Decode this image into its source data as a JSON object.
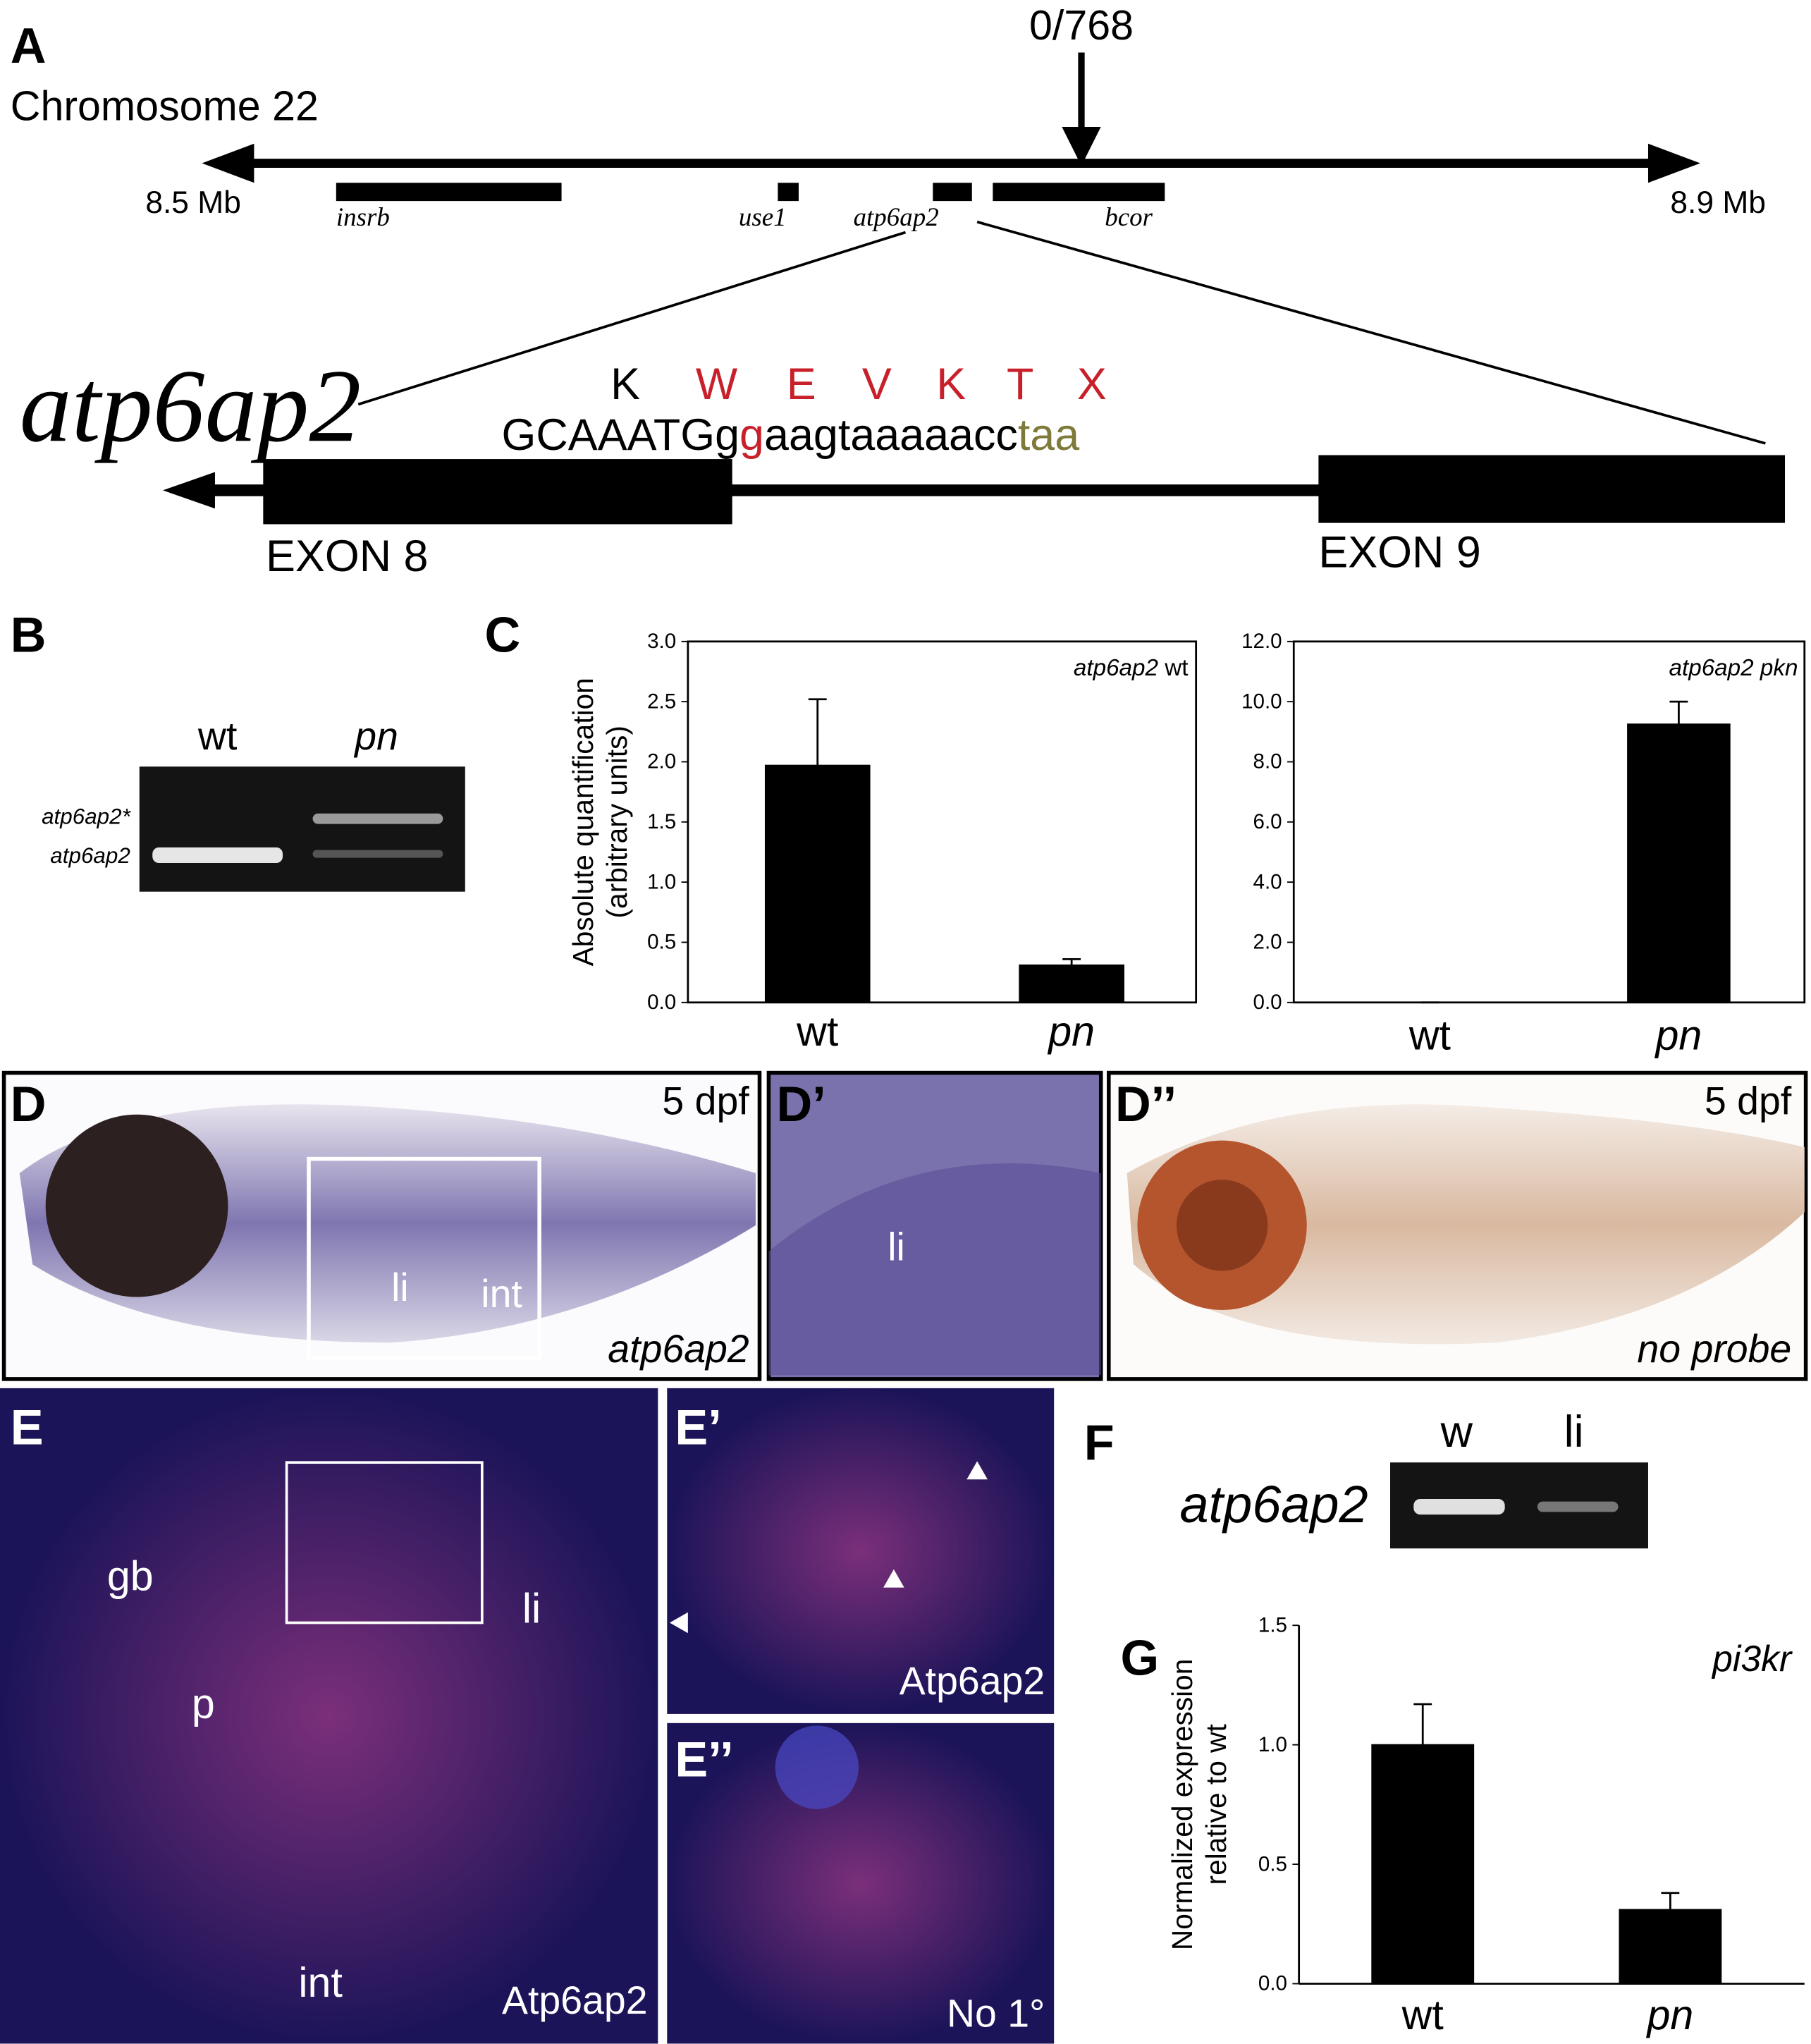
{
  "panelA": {
    "label": "A",
    "chromosome": "Chromosome 22",
    "recombinants": "0/768",
    "start": "8.5 Mb",
    "end": "8.9 Mb",
    "genes": [
      "insrb",
      "use1",
      "atp6ap2",
      "bcor"
    ],
    "gene_title": "atp6ap2",
    "amino_acids": [
      "K",
      "W",
      "E",
      "V",
      "K",
      "T",
      "X"
    ],
    "sequence": [
      "GCAAATGg",
      "g",
      "aagtaaaaacc",
      "taa"
    ],
    "exons": [
      "EXON 8",
      "EXON 9"
    ]
  },
  "panelB": {
    "label": "B",
    "lanes": [
      "wt",
      "pn"
    ],
    "bands": [
      "atp6ap2*",
      "atp6ap2"
    ]
  },
  "panelC": {
    "label": "C"
  },
  "panelD": {
    "label": "D",
    "age": "5 dpf",
    "tissues": [
      "li",
      "int"
    ],
    "probe": "atp6ap2"
  },
  "panelD1": {
    "label": "D’",
    "tissue": "li"
  },
  "panelD2": {
    "label": "D’’",
    "age": "5 dpf",
    "probe": "no probe"
  },
  "panelE": {
    "label": "E",
    "tissues": [
      "gb",
      "p",
      "li",
      "int"
    ],
    "stain": "Atp6ap2"
  },
  "panelE1": {
    "label": "E’",
    "stain": "Atp6ap2"
  },
  "panelE2": {
    "label": "E’’",
    "stain": "No 1°"
  },
  "panelF": {
    "label": "F",
    "lanes": [
      "w",
      "li"
    ],
    "gene": "atp6ap2"
  },
  "panelG": {
    "label": "G"
  },
  "chart_data": [
    {
      "type": "bar",
      "annotation": [
        "atp6ap2",
        "wt"
      ],
      "y_label": [
        "Absolute quantification",
        "(arbitrary units)"
      ],
      "categories": [
        "wt",
        "pn"
      ],
      "values": [
        1.97,
        0.31
      ],
      "errors": [
        0.55,
        0.05
      ],
      "color": "#000000",
      "ylim": [
        0,
        3
      ],
      "yticks": [
        {
          "value": 0,
          "label": "0.0"
        },
        0.5,
        {
          "value": 1,
          "label": "1.0"
        },
        1.5,
        {
          "value": 2,
          "label": "2.0"
        },
        2.5,
        {
          "value": 3,
          "label": "3.0"
        }
      ]
    },
    {
      "type": "bar",
      "annotation": [
        "atp6ap2 pkn"
      ],
      "categories": [
        "wt",
        "pn"
      ],
      "values": [
        0,
        9.25
      ],
      "errors": [
        0,
        0.75
      ],
      "color": "#000000",
      "ylim": [
        0,
        12
      ],
      "yticks": [
        {
          "value": 0,
          "label": "0.0"
        },
        {
          "value": 2,
          "label": "2.0"
        },
        {
          "value": 4,
          "label": "4.0"
        },
        {
          "value": 6,
          "label": "6.0"
        },
        {
          "value": 8,
          "label": "8.0"
        },
        {
          "value": 10,
          "label": "10.0"
        },
        {
          "value": 12,
          "label": "12.0"
        }
      ]
    },
    {
      "type": "bar",
      "annotation": [
        "pi3kr"
      ],
      "y_label": [
        "Normalized expression",
        "relative to wt"
      ],
      "categories": [
        "wt",
        "pn"
      ],
      "values": [
        1.0,
        0.31
      ],
      "errors": [
        0.17,
        0.07
      ],
      "color": "#000000",
      "ylim": [
        0,
        1.5
      ],
      "yticks": [
        {
          "value": 0,
          "label": "0.0"
        },
        0.5,
        {
          "value": 1,
          "label": "1.0"
        },
        1.5
      ]
    }
  ]
}
